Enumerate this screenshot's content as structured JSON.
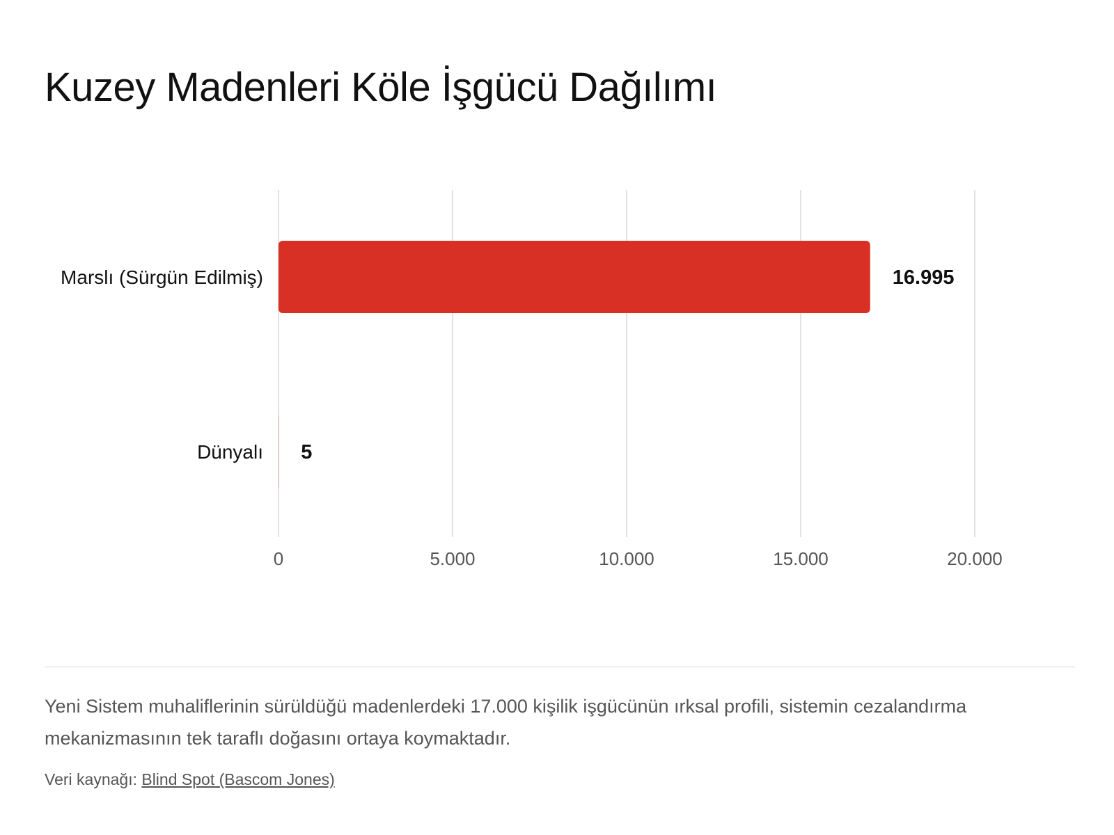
{
  "chart_data": {
    "type": "bar",
    "orientation": "horizontal",
    "title": "Kuzey Madenleri Köle İşgücü Dağılımı",
    "categories": [
      "Marslı (Sürgün Edilmiş)",
      "Dünyalı"
    ],
    "values": [
      16995,
      5
    ],
    "value_labels": [
      "16.995",
      "5"
    ],
    "xlim": [
      0,
      20000
    ],
    "x_ticks": [
      0,
      5000,
      10000,
      15000,
      20000
    ],
    "x_tick_labels": [
      "0",
      "5.000",
      "10.000",
      "15.000",
      "20.000"
    ],
    "grid": true,
    "bar_color": "#d93025"
  },
  "description": "Yeni Sistem muhaliflerinin sürüldüğü madenlerdeki 17.000 kişilik işgücünün ırksal profili, sistemin cezalandırma mekanizmasının tek taraflı doğasını ortaya koymaktadır.",
  "source": {
    "prefix": "Veri kaynağı:",
    "link_text": "Blind Spot (Bascom Jones)"
  }
}
